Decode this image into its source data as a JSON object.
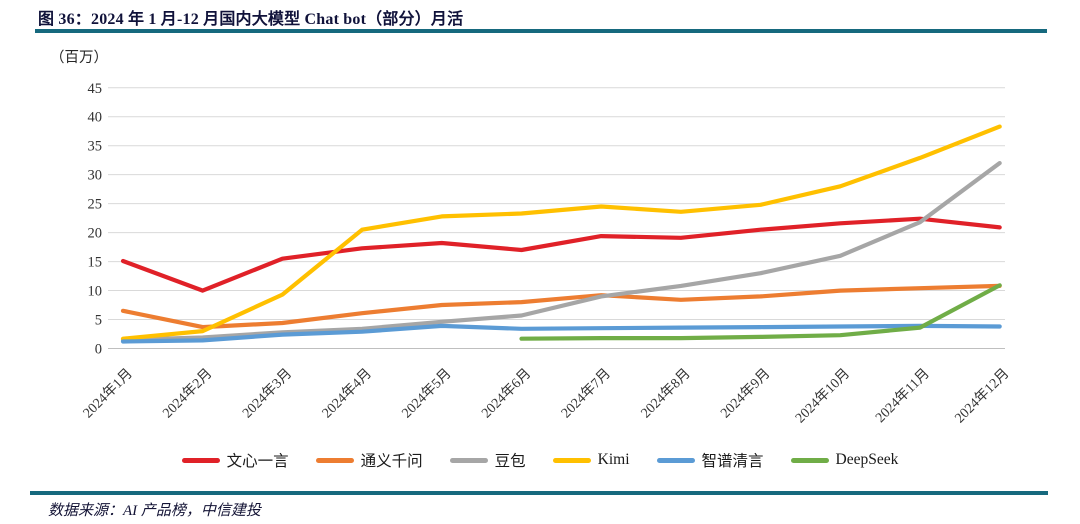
{
  "header": {
    "title": "图 36：2024 年 1 月-12 月国内大模型 Chat bot（部分）月活"
  },
  "footer": {
    "source": "数据来源：AI 产品榜，中信建投"
  },
  "colors": {
    "accent_bar": "#16697E",
    "grid_line": "#D9D9D9",
    "axis_line": "#BFBFBF",
    "tick_text": "#333333"
  },
  "chart_data": {
    "type": "line",
    "title": "2024 年 1 月-12 月国内大模型 Chat bot（部分）月活",
    "unit_label": "（百万）",
    "xlabel": "",
    "ylabel": "（百万）",
    "ylim": [
      0,
      45
    ],
    "ytick_step": 5,
    "grid": true,
    "legend_position": "bottom",
    "categories": [
      "2024年1月",
      "2024年2月",
      "2024年3月",
      "2024年4月",
      "2024年5月",
      "2024年6月",
      "2024年7月",
      "2024年8月",
      "2024年9月",
      "2024年10月",
      "2024年11月",
      "2024年12月"
    ],
    "series": [
      {
        "name": "文心一言",
        "color": "#E02128",
        "values": [
          15.1,
          10.0,
          15.5,
          17.3,
          18.2,
          17.0,
          19.4,
          19.1,
          20.5,
          21.6,
          22.4,
          20.9
        ]
      },
      {
        "name": "通义千问",
        "color": "#ED7D31",
        "values": [
          6.5,
          3.7,
          4.4,
          6.1,
          7.5,
          8.0,
          9.2,
          8.4,
          9.0,
          10.0,
          10.4,
          10.8
        ]
      },
      {
        "name": "豆包",
        "color": "#A6A6A6",
        "values": [
          1.5,
          1.9,
          2.8,
          3.4,
          4.6,
          5.7,
          9.0,
          10.8,
          13.0,
          16.0,
          21.8,
          32.0
        ]
      },
      {
        "name": "Kimi",
        "color": "#FFC000",
        "values": [
          1.7,
          3.0,
          9.3,
          20.5,
          22.8,
          23.3,
          24.5,
          23.6,
          24.8,
          28.0,
          32.9,
          38.3
        ]
      },
      {
        "name": "智谱清言",
        "color": "#5B9BD5",
        "values": [
          1.2,
          1.4,
          2.4,
          2.9,
          3.9,
          3.4,
          3.5,
          3.6,
          3.7,
          3.8,
          3.9,
          3.8
        ]
      },
      {
        "name": "DeepSeek",
        "color": "#70AD47",
        "values": [
          null,
          null,
          null,
          null,
          null,
          1.7,
          1.8,
          1.8,
          2.0,
          2.3,
          3.6,
          10.9
        ]
      }
    ]
  }
}
